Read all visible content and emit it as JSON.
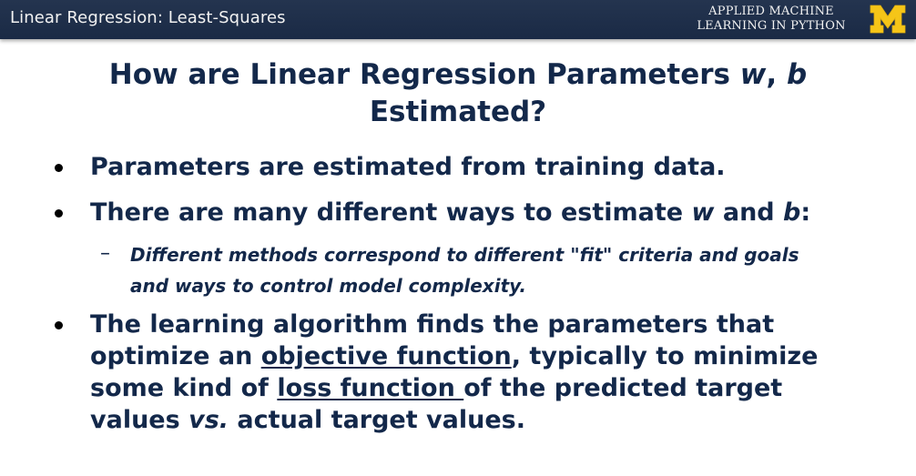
{
  "header": {
    "title": "Linear Regression: Least-Squares",
    "brand_line1": "APPLIED MACHINE",
    "brand_line2": "LEARNING IN PYTHON",
    "logo_color": "#f5c518"
  },
  "slide": {
    "title_part1": "How are Linear Regression Parameters ",
    "title_var_w": "w",
    "title_comma": ", ",
    "title_var_b": "b",
    "title_line2": "Estimated?"
  },
  "bullets": {
    "b1": "Parameters are estimated from training data.",
    "b2_part1": "There are many different ways to estimate ",
    "b2_w": "w",
    "b2_and": " and ",
    "b2_b": "b",
    "b2_end": ":",
    "sub_dash": "–",
    "sub_line1": "Different methods correspond to different \"fit\" criteria and goals",
    "sub_line2": "and ways to control model complexity.",
    "b3_line1": "The learning algorithm finds the parameters that",
    "b3_line2_part1": "optimize an ",
    "b3_line2_link": "objective function",
    "b3_line2_part2": ", typically to minimize",
    "b3_line3_part1": "some kind of ",
    "b3_line3_link": "loss function ",
    "b3_line3_part2": "of the predicted target",
    "b3_line4_part1": "values ",
    "b3_line4_vs": "vs.",
    "b3_line4_part2": " actual target values."
  }
}
